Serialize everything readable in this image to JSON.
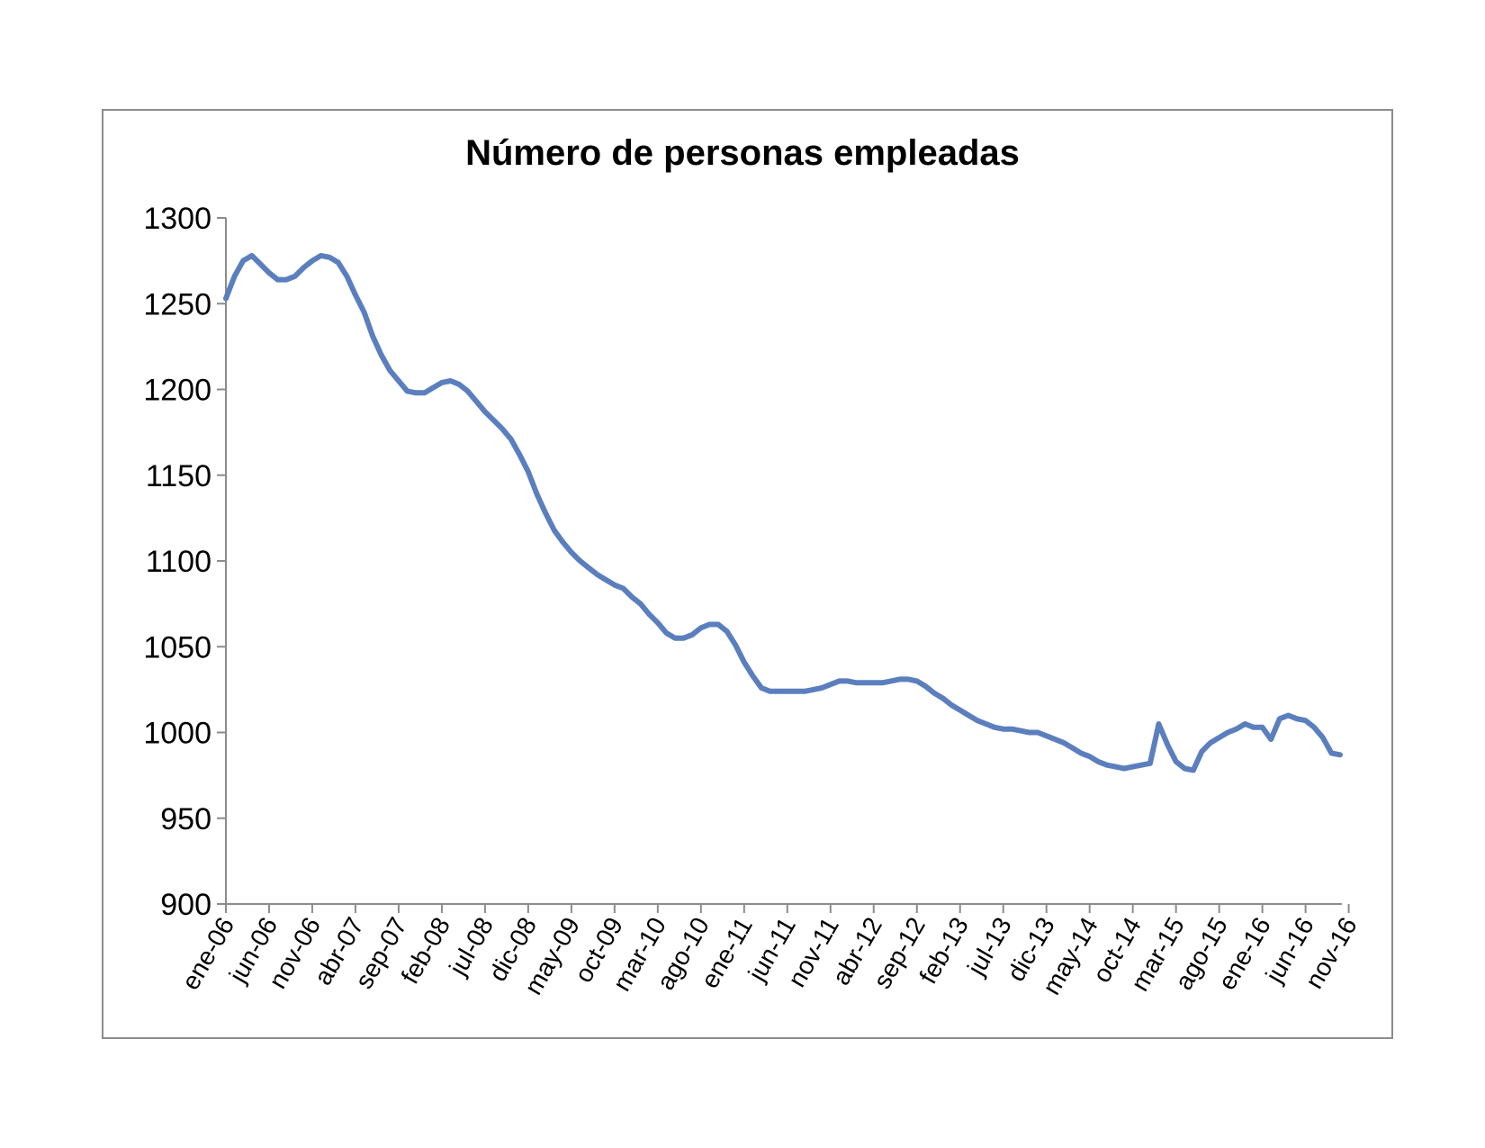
{
  "chart_data": {
    "type": "line",
    "title": "Número de personas empleadas",
    "xlabel": "",
    "ylabel": "",
    "ylim": [
      900,
      1300
    ],
    "yticks": [
      900,
      950,
      1000,
      1050,
      1100,
      1150,
      1200,
      1250,
      1300
    ],
    "xtick_labels": [
      "ene-06",
      "jun-06",
      "nov-06",
      "abr-07",
      "sep-07",
      "feb-08",
      "jul-08",
      "dic-08",
      "may-09",
      "oct-09",
      "mar-10",
      "ago-10",
      "ene-11",
      "jun-11",
      "nov-11",
      "abr-12",
      "sep-12",
      "feb-13",
      "jul-13",
      "dic-13",
      "may-14",
      "oct-14",
      "mar-15",
      "ago-15",
      "ene-16",
      "jun-16",
      "nov-16"
    ],
    "xtick_step_months": 5,
    "grid": false,
    "legend": "none",
    "line_color": "#5b7fbe",
    "series": [
      {
        "values": [
          {
            "x": "ene-06",
            "y": 1253
          },
          {
            "x": "feb-06",
            "y": 1266
          },
          {
            "x": "mar-06",
            "y": 1275
          },
          {
            "x": "abr-06",
            "y": 1278
          },
          {
            "x": "may-06",
            "y": 1273
          },
          {
            "x": "jun-06",
            "y": 1268
          },
          {
            "x": "jul-06",
            "y": 1264
          },
          {
            "x": "ago-06",
            "y": 1264
          },
          {
            "x": "sep-06",
            "y": 1266
          },
          {
            "x": "oct-06",
            "y": 1271
          },
          {
            "x": "nov-06",
            "y": 1275
          },
          {
            "x": "dic-06",
            "y": 1278
          },
          {
            "x": "ene-07",
            "y": 1277
          },
          {
            "x": "feb-07",
            "y": 1274
          },
          {
            "x": "mar-07",
            "y": 1266
          },
          {
            "x": "abr-07",
            "y": 1255
          },
          {
            "x": "may-07",
            "y": 1245
          },
          {
            "x": "jun-07",
            "y": 1231
          },
          {
            "x": "jul-07",
            "y": 1220
          },
          {
            "x": "ago-07",
            "y": 1211
          },
          {
            "x": "sep-07",
            "y": 1205
          },
          {
            "x": "oct-07",
            "y": 1199
          },
          {
            "x": "nov-07",
            "y": 1198
          },
          {
            "x": "dic-07",
            "y": 1198
          },
          {
            "x": "ene-08",
            "y": 1201
          },
          {
            "x": "feb-08",
            "y": 1204
          },
          {
            "x": "mar-08",
            "y": 1205
          },
          {
            "x": "abr-08",
            "y": 1203
          },
          {
            "x": "may-08",
            "y": 1199
          },
          {
            "x": "jun-08",
            "y": 1193
          },
          {
            "x": "jul-08",
            "y": 1187
          },
          {
            "x": "ago-08",
            "y": 1182
          },
          {
            "x": "sep-08",
            "y": 1177
          },
          {
            "x": "oct-08",
            "y": 1171
          },
          {
            "x": "nov-08",
            "y": 1162
          },
          {
            "x": "dic-08",
            "y": 1152
          },
          {
            "x": "ene-09",
            "y": 1139
          },
          {
            "x": "feb-09",
            "y": 1128
          },
          {
            "x": "mar-09",
            "y": 1118
          },
          {
            "x": "abr-09",
            "y": 1111
          },
          {
            "x": "may-09",
            "y": 1105
          },
          {
            "x": "jun-09",
            "y": 1100
          },
          {
            "x": "jul-09",
            "y": 1096
          },
          {
            "x": "ago-09",
            "y": 1092
          },
          {
            "x": "sep-09",
            "y": 1089
          },
          {
            "x": "oct-09",
            "y": 1086
          },
          {
            "x": "nov-09",
            "y": 1084
          },
          {
            "x": "dic-09",
            "y": 1079
          },
          {
            "x": "ene-10",
            "y": 1075
          },
          {
            "x": "feb-10",
            "y": 1069
          },
          {
            "x": "mar-10",
            "y": 1064
          },
          {
            "x": "abr-10",
            "y": 1058
          },
          {
            "x": "may-10",
            "y": 1055
          },
          {
            "x": "jun-10",
            "y": 1055
          },
          {
            "x": "jul-10",
            "y": 1057
          },
          {
            "x": "ago-10",
            "y": 1061
          },
          {
            "x": "sep-10",
            "y": 1063
          },
          {
            "x": "oct-10",
            "y": 1063
          },
          {
            "x": "nov-10",
            "y": 1059
          },
          {
            "x": "dic-10",
            "y": 1051
          },
          {
            "x": "ene-11",
            "y": 1041
          },
          {
            "x": "feb-11",
            "y": 1033
          },
          {
            "x": "mar-11",
            "y": 1026
          },
          {
            "x": "abr-11",
            "y": 1024
          },
          {
            "x": "may-11",
            "y": 1024
          },
          {
            "x": "jun-11",
            "y": 1024
          },
          {
            "x": "jul-11",
            "y": 1024
          },
          {
            "x": "ago-11",
            "y": 1024
          },
          {
            "x": "sep-11",
            "y": 1025
          },
          {
            "x": "oct-11",
            "y": 1026
          },
          {
            "x": "nov-11",
            "y": 1028
          },
          {
            "x": "dic-11",
            "y": 1030
          },
          {
            "x": "ene-12",
            "y": 1030
          },
          {
            "x": "feb-12",
            "y": 1029
          },
          {
            "x": "mar-12",
            "y": 1029
          },
          {
            "x": "abr-12",
            "y": 1029
          },
          {
            "x": "may-12",
            "y": 1029
          },
          {
            "x": "jun-12",
            "y": 1030
          },
          {
            "x": "jul-12",
            "y": 1031
          },
          {
            "x": "ago-12",
            "y": 1031
          },
          {
            "x": "sep-12",
            "y": 1030
          },
          {
            "x": "oct-12",
            "y": 1027
          },
          {
            "x": "nov-12",
            "y": 1023
          },
          {
            "x": "dic-12",
            "y": 1020
          },
          {
            "x": "ene-13",
            "y": 1016
          },
          {
            "x": "feb-13",
            "y": 1013
          },
          {
            "x": "mar-13",
            "y": 1010
          },
          {
            "x": "abr-13",
            "y": 1007
          },
          {
            "x": "may-13",
            "y": 1005
          },
          {
            "x": "jun-13",
            "y": 1003
          },
          {
            "x": "jul-13",
            "y": 1002
          },
          {
            "x": "ago-13",
            "y": 1002
          },
          {
            "x": "sep-13",
            "y": 1001
          },
          {
            "x": "oct-13",
            "y": 1000
          },
          {
            "x": "nov-13",
            "y": 1000
          },
          {
            "x": "dic-13",
            "y": 998
          },
          {
            "x": "ene-14",
            "y": 996
          },
          {
            "x": "feb-14",
            "y": 994
          },
          {
            "x": "mar-14",
            "y": 991
          },
          {
            "x": "abr-14",
            "y": 988
          },
          {
            "x": "may-14",
            "y": 986
          },
          {
            "x": "jun-14",
            "y": 983
          },
          {
            "x": "jul-14",
            "y": 981
          },
          {
            "x": "ago-14",
            "y": 980
          },
          {
            "x": "sep-14",
            "y": 979
          },
          {
            "x": "oct-14",
            "y": 980
          },
          {
            "x": "nov-14",
            "y": 981
          },
          {
            "x": "dic-14",
            "y": 982
          },
          {
            "x": "ene-15",
            "y": 1005
          },
          {
            "x": "feb-15",
            "y": 993
          },
          {
            "x": "mar-15",
            "y": 983
          },
          {
            "x": "abr-15",
            "y": 979
          },
          {
            "x": "may-15",
            "y": 978
          },
          {
            "x": "jun-15",
            "y": 989
          },
          {
            "x": "jul-15",
            "y": 994
          },
          {
            "x": "ago-15",
            "y": 997
          },
          {
            "x": "sep-15",
            "y": 1000
          },
          {
            "x": "oct-15",
            "y": 1002
          },
          {
            "x": "nov-15",
            "y": 1005
          },
          {
            "x": "dic-15",
            "y": 1003
          },
          {
            "x": "ene-16",
            "y": 1003
          },
          {
            "x": "feb-16",
            "y": 996
          },
          {
            "x": "mar-16",
            "y": 1008
          },
          {
            "x": "abr-16",
            "y": 1010
          },
          {
            "x": "may-16",
            "y": 1008
          },
          {
            "x": "jun-16",
            "y": 1007
          },
          {
            "x": "jul-16",
            "y": 1003
          },
          {
            "x": "ago-16",
            "y": 997
          },
          {
            "x": "sep-16",
            "y": 988
          },
          {
            "x": "oct-16",
            "y": 987
          }
        ]
      }
    ]
  }
}
